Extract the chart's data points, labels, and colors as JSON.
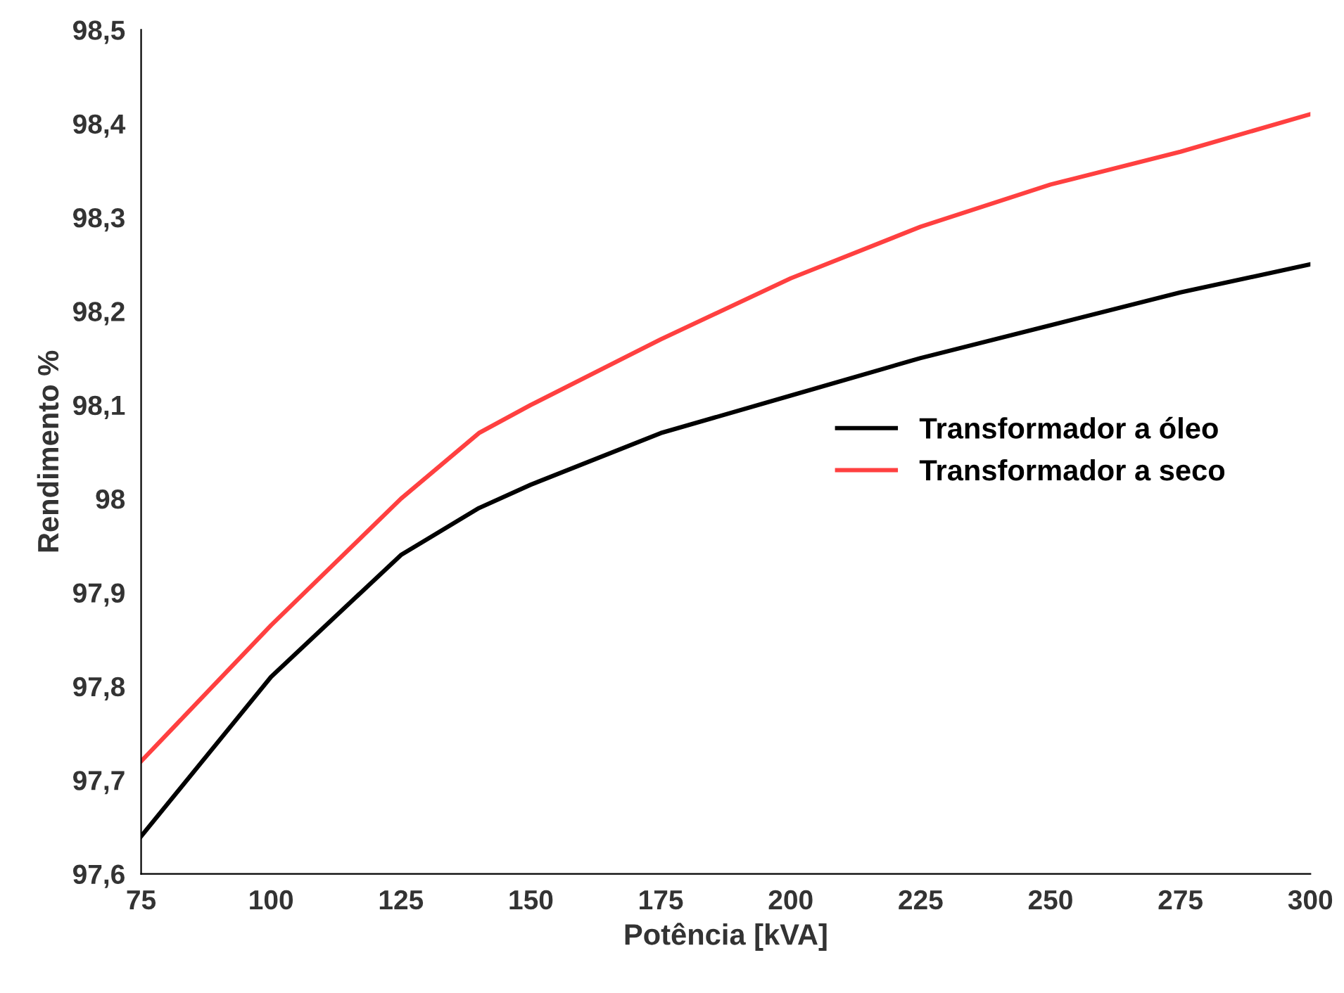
{
  "chart_data": {
    "type": "line",
    "xlabel": "Potência [kVA]",
    "ylabel": "Rendimento %",
    "x": [
      75,
      100,
      125,
      140,
      150,
      175,
      200,
      225,
      250,
      275,
      300
    ],
    "series": [
      {
        "name": "Transformador a óleo",
        "color": "#000000",
        "values": [
          97.64,
          97.81,
          97.94,
          97.99,
          98.015,
          98.07,
          98.11,
          98.15,
          98.185,
          98.22,
          98.25
        ]
      },
      {
        "name": "Transformador a seco",
        "color": "#ff4040",
        "values": [
          97.72,
          97.865,
          98.0,
          98.07,
          98.1,
          98.17,
          98.235,
          98.29,
          98.335,
          98.37,
          98.41
        ]
      }
    ],
    "xlim": [
      75,
      300
    ],
    "ylim": [
      97.6,
      98.5
    ],
    "xticks": [
      75,
      100,
      125,
      150,
      175,
      200,
      225,
      250,
      275,
      300
    ],
    "yticks": [
      {
        "value": 97.6,
        "label": "97,6"
      },
      {
        "value": 97.7,
        "label": "97,7"
      },
      {
        "value": 97.8,
        "label": "97,8"
      },
      {
        "value": 97.9,
        "label": "97,9"
      },
      {
        "value": 98,
        "label": "98"
      },
      {
        "value": 98.1,
        "label": "98,1"
      },
      {
        "value": 98.2,
        "label": "98,2"
      },
      {
        "value": 98.3,
        "label": "98,3"
      },
      {
        "value": 98.4,
        "label": "98,4"
      },
      {
        "value": 98.5,
        "label": "98,5"
      }
    ],
    "grid": false,
    "legend": "right",
    "marker": "none",
    "line_style": "solid"
  }
}
